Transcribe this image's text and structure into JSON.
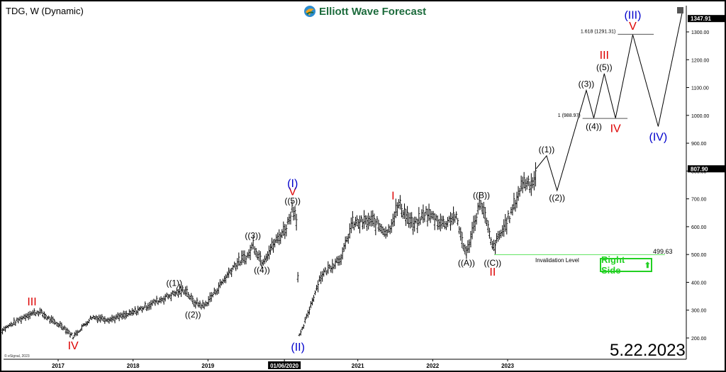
{
  "header": {
    "ticker": "TDG, W (Dynamic)",
    "logo_text": "Elliott Wave Forecast",
    "date": "5.22.2023",
    "copyright": "© eSignal, 2023"
  },
  "colors": {
    "black_label": "#000000",
    "red_label": "#dd0000",
    "blue_label": "#0000cc",
    "green": "#22d022",
    "logo_green": "#1c6b3c"
  },
  "chart_data": {
    "type": "bar",
    "ylim": [
      150,
      1370
    ],
    "y_ticks": [
      "200.00",
      "300.00",
      "400.00",
      "500.00",
      "600.00",
      "700.00",
      "800.00",
      "900.00",
      "1000.00",
      "1100.00",
      "1200.00",
      "1300.00"
    ],
    "y_tick_values": [
      200,
      300,
      400,
      500,
      600,
      700,
      800,
      900,
      1000,
      1100,
      1200,
      1300
    ],
    "x_labels": [
      "2017",
      "2018",
      "2019",
      "01/06/2020",
      "2021",
      "2022",
      "2023"
    ],
    "x_label_dates": [
      2017.0,
      2018.0,
      2019.0,
      2020.02,
      2021.0,
      2022.0,
      2023.0
    ],
    "price_path": [
      [
        2016.2,
        220
      ],
      [
        2016.6,
        285
      ],
      [
        2016.75,
        295
      ],
      [
        2016.95,
        255
      ],
      [
        2017.05,
        245
      ],
      [
        2017.2,
        205
      ],
      [
        2017.45,
        275
      ],
      [
        2017.7,
        268
      ],
      [
        2017.95,
        285
      ],
      [
        2018.3,
        330
      ],
      [
        2018.55,
        360
      ],
      [
        2018.7,
        375
      ],
      [
        2018.8,
        330
      ],
      [
        2018.95,
        315
      ],
      [
        2019.15,
        385
      ],
      [
        2019.35,
        460
      ],
      [
        2019.55,
        500
      ],
      [
        2019.6,
        540
      ],
      [
        2019.72,
        475
      ],
      [
        2019.9,
        545
      ],
      [
        2020.05,
        600
      ],
      [
        2020.13,
        670
      ],
      [
        2020.18,
        640
      ],
      [
        2020.22,
        200
      ],
      [
        2020.35,
        300
      ],
      [
        2020.5,
        420
      ],
      [
        2020.8,
        500
      ],
      [
        2020.92,
        610
      ],
      [
        2021.2,
        620
      ],
      [
        2021.4,
        580
      ],
      [
        2021.5,
        650
      ],
      [
        2021.55,
        680
      ],
      [
        2021.75,
        600
      ],
      [
        2021.9,
        650
      ],
      [
        2022.15,
        610
      ],
      [
        2022.3,
        640
      ],
      [
        2022.45,
        500
      ],
      [
        2022.6,
        660
      ],
      [
        2022.65,
        690
      ],
      [
        2022.8,
        520
      ],
      [
        2022.92,
        580
      ],
      [
        2023.05,
        650
      ],
      [
        2023.2,
        760
      ],
      [
        2023.35,
        760
      ],
      [
        2023.38,
        808
      ]
    ],
    "projection_path": [
      [
        2023.38,
        808
      ],
      [
        2023.52,
        855
      ],
      [
        2023.66,
        730
      ],
      [
        2024.05,
        1090
      ],
      [
        2024.15,
        990
      ],
      [
        2024.29,
        1150
      ],
      [
        2024.44,
        990
      ],
      [
        2024.67,
        1290
      ],
      [
        2025.01,
        960
      ],
      [
        2025.33,
        1370
      ]
    ],
    "current_price": "807.90",
    "current_price_value": 807.9,
    "top_price": "1347.91",
    "top_price_value": 1347.91,
    "levels": [
      {
        "label": "1.618 (1291.31)",
        "value": 1291.31
      },
      {
        "label": "1 (988.97)",
        "value": 988.97
      }
    ],
    "invalidation": {
      "label": "Invalidation Level",
      "value_text": "499.63",
      "value": 499.63
    },
    "right_side_label": "Right Side",
    "wave_labels": [
      {
        "text": "III",
        "x": 2016.65,
        "y": 305,
        "color": "red",
        "pos": "above"
      },
      {
        "text": "IV",
        "x": 2017.2,
        "y": 205,
        "color": "red",
        "pos": "below"
      },
      {
        "text": "((1))",
        "x": 2018.55,
        "y": 375,
        "color": "black",
        "pos": "above"
      },
      {
        "text": "((2))",
        "x": 2018.8,
        "y": 310,
        "color": "black",
        "pos": "below"
      },
      {
        "text": "((3))",
        "x": 2019.6,
        "y": 545,
        "color": "black",
        "pos": "above"
      },
      {
        "text": "((4))",
        "x": 2019.72,
        "y": 470,
        "color": "black",
        "pos": "below"
      },
      {
        "text": "((5))",
        "x": 2020.13,
        "y": 670,
        "color": "black",
        "pos": "above"
      },
      {
        "text": "V",
        "x": 2020.13,
        "y": 700,
        "color": "red",
        "pos": "above"
      },
      {
        "text": "(I)",
        "x": 2020.13,
        "y": 730,
        "color": "blue",
        "pos": "above"
      },
      {
        "text": "(II)",
        "x": 2020.2,
        "y": 200,
        "color": "blue",
        "pos": "below"
      },
      {
        "text": "I",
        "x": 2021.47,
        "y": 685,
        "color": "red",
        "pos": "above"
      },
      {
        "text": "((A))",
        "x": 2022.45,
        "y": 495,
        "color": "black",
        "pos": "below"
      },
      {
        "text": "((B))",
        "x": 2022.65,
        "y": 690,
        "color": "black",
        "pos": "above"
      },
      {
        "text": "((C))",
        "x": 2022.8,
        "y": 495,
        "color": "black",
        "pos": "below"
      },
      {
        "text": "II",
        "x": 2022.8,
        "y": 470,
        "color": "red",
        "pos": "below"
      },
      {
        "text": "((1))",
        "x": 2023.52,
        "y": 855,
        "color": "black",
        "pos": "above"
      },
      {
        "text": "((2))",
        "x": 2023.66,
        "y": 730,
        "color": "black",
        "pos": "below"
      },
      {
        "text": "((3))",
        "x": 2024.05,
        "y": 1090,
        "color": "black",
        "pos": "above"
      },
      {
        "text": "((4))",
        "x": 2024.15,
        "y": 985,
        "color": "black",
        "pos": "below"
      },
      {
        "text": "((5))",
        "x": 2024.29,
        "y": 1150,
        "color": "black",
        "pos": "above"
      },
      {
        "text": "III",
        "x": 2024.29,
        "y": 1190,
        "color": "red",
        "pos": "above"
      },
      {
        "text": "IV",
        "x": 2024.44,
        "y": 985,
        "color": "red",
        "pos": "below"
      },
      {
        "text": "V",
        "x": 2024.67,
        "y": 1295,
        "color": "red",
        "pos": "above"
      },
      {
        "text": "(III)",
        "x": 2024.67,
        "y": 1335,
        "color": "blue",
        "pos": "above"
      },
      {
        "text": "(IV)",
        "x": 2025.01,
        "y": 955,
        "color": "blue",
        "pos": "below"
      }
    ]
  }
}
